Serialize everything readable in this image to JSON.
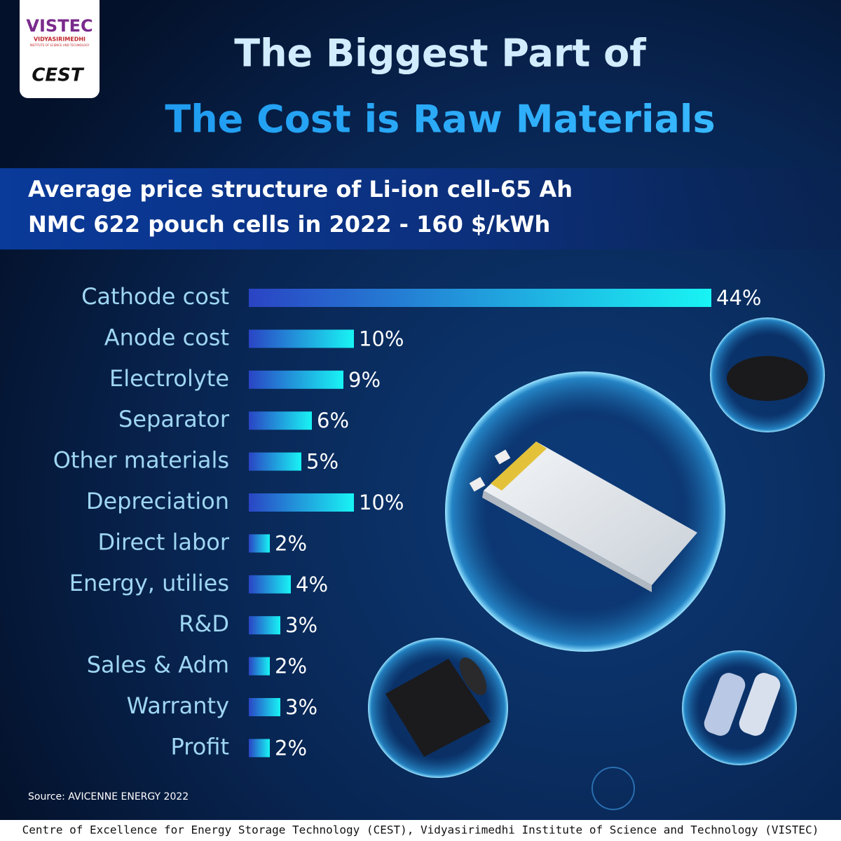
{
  "chart_data": {
    "type": "hbar",
    "title_lines": [
      "The Biggest Part of",
      "The Cost is Raw Materials"
    ],
    "subtitle_lines": [
      "Average price structure of Li-ion cell-65 Ah",
      "NMC 622 pouch cells in 2022 - 160 $/kWh"
    ],
    "categories": [
      "Cathode cost",
      "Anode cost",
      "Electrolyte",
      "Separator",
      "Other materials",
      "Depreciation",
      "Direct labor",
      "Energy, utilies",
      "R&D",
      "Sales & Adm",
      "Warranty",
      "Profit"
    ],
    "values": [
      44,
      10,
      9,
      6,
      5,
      10,
      2,
      4,
      3,
      2,
      3,
      2
    ],
    "value_labels": [
      "44%",
      "10%",
      "9%",
      "6%",
      "5%",
      "10%",
      "2%",
      "4%",
      "3%",
      "2%",
      "3%",
      "2%"
    ],
    "colors": [
      "#2a44c4",
      "#18f4f4"
    ],
    "source": "Source: AVICENNE ENERGY 2022"
  },
  "logo": {
    "name": "VISTEC",
    "line1": "VIDYASIRIMEDHI",
    "line2": "INSTITUTE OF SCIENCE AND TECHNOLOGY",
    "mark": "CEST"
  },
  "footer": "Centre of Excellence for Energy Storage Technology (CEST), Vidyasirimedhi Institute of Science and Technology (VISTEC)"
}
